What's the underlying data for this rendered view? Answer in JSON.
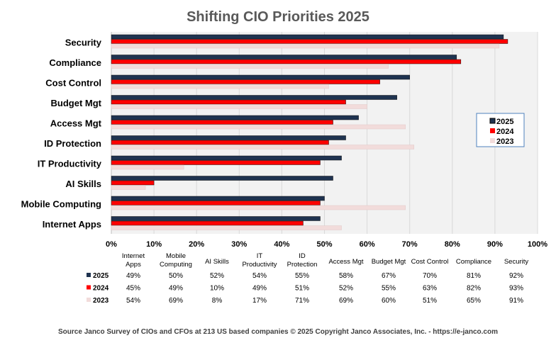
{
  "chart_data": {
    "type": "bar",
    "orientation": "horizontal",
    "title": "Shifting CIO Priorities 2025",
    "categories": [
      "Internet Apps",
      "Mobile Computing",
      "AI Skills",
      "IT Productivity",
      "ID Protection",
      "Access Mgt",
      "Budget Mgt",
      "Cost Control",
      "Compliance",
      "Security"
    ],
    "table_headers": [
      [
        "Internet",
        "Apps"
      ],
      [
        "Mobile",
        "Computing"
      ],
      [
        "AI Skills"
      ],
      [
        "IT",
        "Productivity"
      ],
      [
        "ID",
        "Protection"
      ],
      [
        "Access Mgt"
      ],
      [
        "Budget Mgt"
      ],
      [
        "Cost Control"
      ],
      [
        "Compliance"
      ],
      [
        "Security"
      ]
    ],
    "series": [
      {
        "name": "2025",
        "color": "#1f3350",
        "values": [
          49,
          50,
          52,
          54,
          55,
          58,
          67,
          70,
          81,
          92
        ]
      },
      {
        "name": "2024",
        "color": "#ff0000",
        "values": [
          45,
          49,
          10,
          49,
          51,
          52,
          55,
          63,
          82,
          93
        ]
      },
      {
        "name": "2023",
        "color": "#f2dcdb",
        "values": [
          54,
          69,
          8,
          17,
          71,
          69,
          60,
          51,
          65,
          91
        ]
      }
    ],
    "xlim": [
      0,
      100
    ],
    "xticks": [
      "0%",
      "10%",
      "20%",
      "30%",
      "40%",
      "50%",
      "60%",
      "70%",
      "80%",
      "90%",
      "100%"
    ],
    "grid": true,
    "legend": "right",
    "source": "Source Janco Survey of CIOs and CFOs at 213 US based companies © 2025 Copyright Janco Associates, Inc. - https://e-janco.com"
  }
}
